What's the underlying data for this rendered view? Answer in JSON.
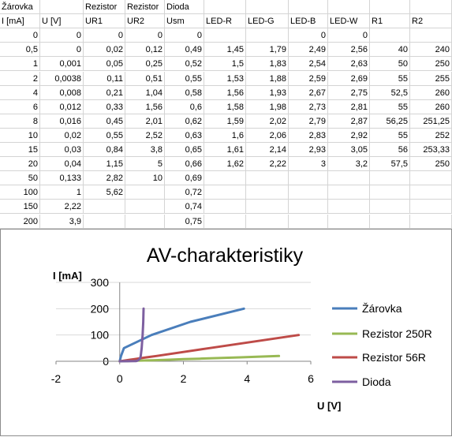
{
  "sheet": {
    "header_row1": [
      "Žárovka",
      "",
      "Rezistor",
      "Rezistor",
      "Dioda",
      "",
      "",
      "",
      "",
      "",
      ""
    ],
    "header_row2": [
      "I [mA]",
      "U [V]",
      "UR1",
      "UR2",
      "Usm",
      "LED-R",
      "LED-G",
      "LED-B",
      "LED-W",
      "R1",
      "R2"
    ],
    "rows": [
      [
        "0",
        "0",
        "0",
        "0",
        "0",
        "",
        "",
        "0",
        "0",
        "",
        ""
      ],
      [
        "0,5",
        "0",
        "0,02",
        "0,12",
        "0,49",
        "1,45",
        "1,79",
        "2,49",
        "2,56",
        "40",
        "240"
      ],
      [
        "1",
        "0,001",
        "0,05",
        "0,25",
        "0,52",
        "1,5",
        "1,83",
        "2,54",
        "2,63",
        "50",
        "250"
      ],
      [
        "2",
        "0,0038",
        "0,11",
        "0,51",
        "0,55",
        "1,53",
        "1,88",
        "2,59",
        "2,69",
        "55",
        "255"
      ],
      [
        "4",
        "0,008",
        "0,21",
        "1,04",
        "0,58",
        "1,56",
        "1,93",
        "2,67",
        "2,75",
        "52,5",
        "260"
      ],
      [
        "6",
        "0,012",
        "0,33",
        "1,56",
        "0,6",
        "1,58",
        "1,98",
        "2,73",
        "2,81",
        "55",
        "260"
      ],
      [
        "8",
        "0,016",
        "0,45",
        "2,01",
        "0,62",
        "1,59",
        "2,02",
        "2,79",
        "2,87",
        "56,25",
        "251,25"
      ],
      [
        "10",
        "0,02",
        "0,55",
        "2,52",
        "0,63",
        "1,6",
        "2,06",
        "2,83",
        "2,92",
        "55",
        "252"
      ],
      [
        "15",
        "0,03",
        "0,84",
        "3,8",
        "0,65",
        "1,61",
        "2,14",
        "2,93",
        "3,05",
        "56",
        "253,33"
      ],
      [
        "20",
        "0,04",
        "1,15",
        "5",
        "0,66",
        "1,62",
        "2,22",
        "3",
        "3,2",
        "57,5",
        "250"
      ],
      [
        "50",
        "0,133",
        "2,82",
        "10",
        "0,69",
        "",
        "",
        "",
        "",
        "",
        ""
      ],
      [
        "100",
        "1",
        "5,62",
        "",
        "0,72",
        "",
        "",
        "",
        "",
        "",
        ""
      ],
      [
        "150",
        "2,22",
        "",
        "",
        "0,74",
        "",
        "",
        "",
        "",
        "",
        ""
      ],
      [
        "200",
        "3,9",
        "",
        "",
        "0,75",
        "",
        "",
        "",
        "",
        "",
        ""
      ]
    ]
  },
  "chart_data": {
    "type": "scatter",
    "title": "AV-charakteristiky",
    "xlabel": "U [V]",
    "ylabel": "I [mA]",
    "xlim": [
      -2,
      6
    ],
    "ylim": [
      0,
      300
    ],
    "xticks": [
      "-2",
      "0",
      "2",
      "4",
      "6"
    ],
    "yticks": [
      "0",
      "100",
      "200",
      "300"
    ],
    "grid": "horizontal",
    "legend": "right",
    "series": [
      {
        "name": "Žárovka",
        "color": "#4a7ebb",
        "x": [
          0,
          0,
          0.001,
          0.0038,
          0.008,
          0.012,
          0.016,
          0.02,
          0.03,
          0.04,
          0.133,
          1,
          2.22,
          3.9
        ],
        "y": [
          0,
          0.5,
          1,
          2,
          4,
          6,
          8,
          10,
          15,
          20,
          50,
          100,
          150,
          200
        ]
      },
      {
        "name": "Rezistor 250R",
        "color": "#98b954",
        "x": [
          0,
          0.12,
          0.25,
          0.51,
          1.04,
          1.56,
          2.01,
          2.52,
          3.8,
          5
        ],
        "y": [
          0,
          0.5,
          1,
          2,
          4,
          6,
          8,
          10,
          15,
          20
        ]
      },
      {
        "name": "Rezistor 56R",
        "color": "#be4b48",
        "x": [
          0,
          0.02,
          0.05,
          0.11,
          0.21,
          0.33,
          0.45,
          0.55,
          0.84,
          1.15,
          2.82,
          5.62
        ],
        "y": [
          0,
          0.5,
          1,
          2,
          4,
          6,
          8,
          10,
          15,
          20,
          50,
          100
        ]
      },
      {
        "name": "Dioda",
        "color": "#7d5fa0",
        "x": [
          0,
          0.49,
          0.52,
          0.55,
          0.58,
          0.6,
          0.62,
          0.63,
          0.65,
          0.66,
          0.69,
          0.72,
          0.74,
          0.75
        ],
        "y": [
          0,
          0.5,
          1,
          2,
          4,
          6,
          8,
          10,
          15,
          20,
          50,
          100,
          150,
          200
        ]
      }
    ]
  }
}
